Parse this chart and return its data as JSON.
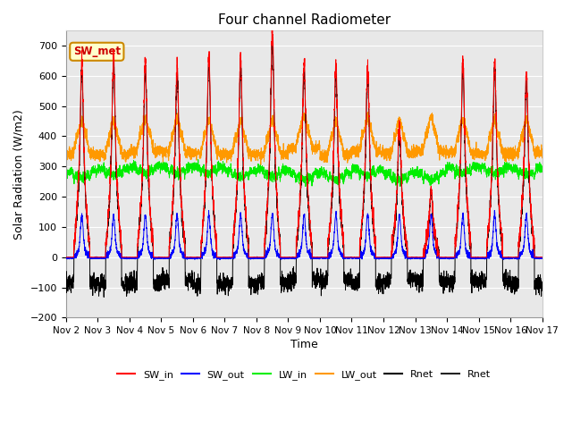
{
  "title": "Four channel Radiometer",
  "xlabel": "Time",
  "ylabel": "Solar Radiation (W/m2)",
  "ylim": [
    -200,
    750
  ],
  "yticks": [
    -200,
    -100,
    0,
    100,
    200,
    300,
    400,
    500,
    600,
    700
  ],
  "x_tick_labels": [
    "Nov 2",
    "Nov 3",
    "Nov 4",
    "Nov 5",
    "Nov 6",
    "Nov 7",
    "Nov 8",
    "Nov 9",
    "Nov 10",
    "Nov 11",
    "Nov 12",
    "Nov 13",
    "Nov 14",
    "Nov 15",
    "Nov 16",
    "Nov 17"
  ],
  "annotation_text": "SW_met",
  "annotation_bg": "#ffffcc",
  "annotation_border": "#cc8800",
  "annotation_text_color": "#cc0000",
  "colors": {
    "SW_in": "#ff0000",
    "SW_out": "#0000ff",
    "LW_in": "#00ee00",
    "LW_out": "#ff9900",
    "Rnet1": "#000000",
    "Rnet2": "#222222"
  },
  "legend_labels": [
    "SW_in",
    "SW_out",
    "LW_in",
    "LW_out",
    "Rnet",
    "Rnet"
  ],
  "plot_bg": "#e8e8e8",
  "grid_color": "#ffffff",
  "n_days": 15,
  "pts_per_day": 288
}
